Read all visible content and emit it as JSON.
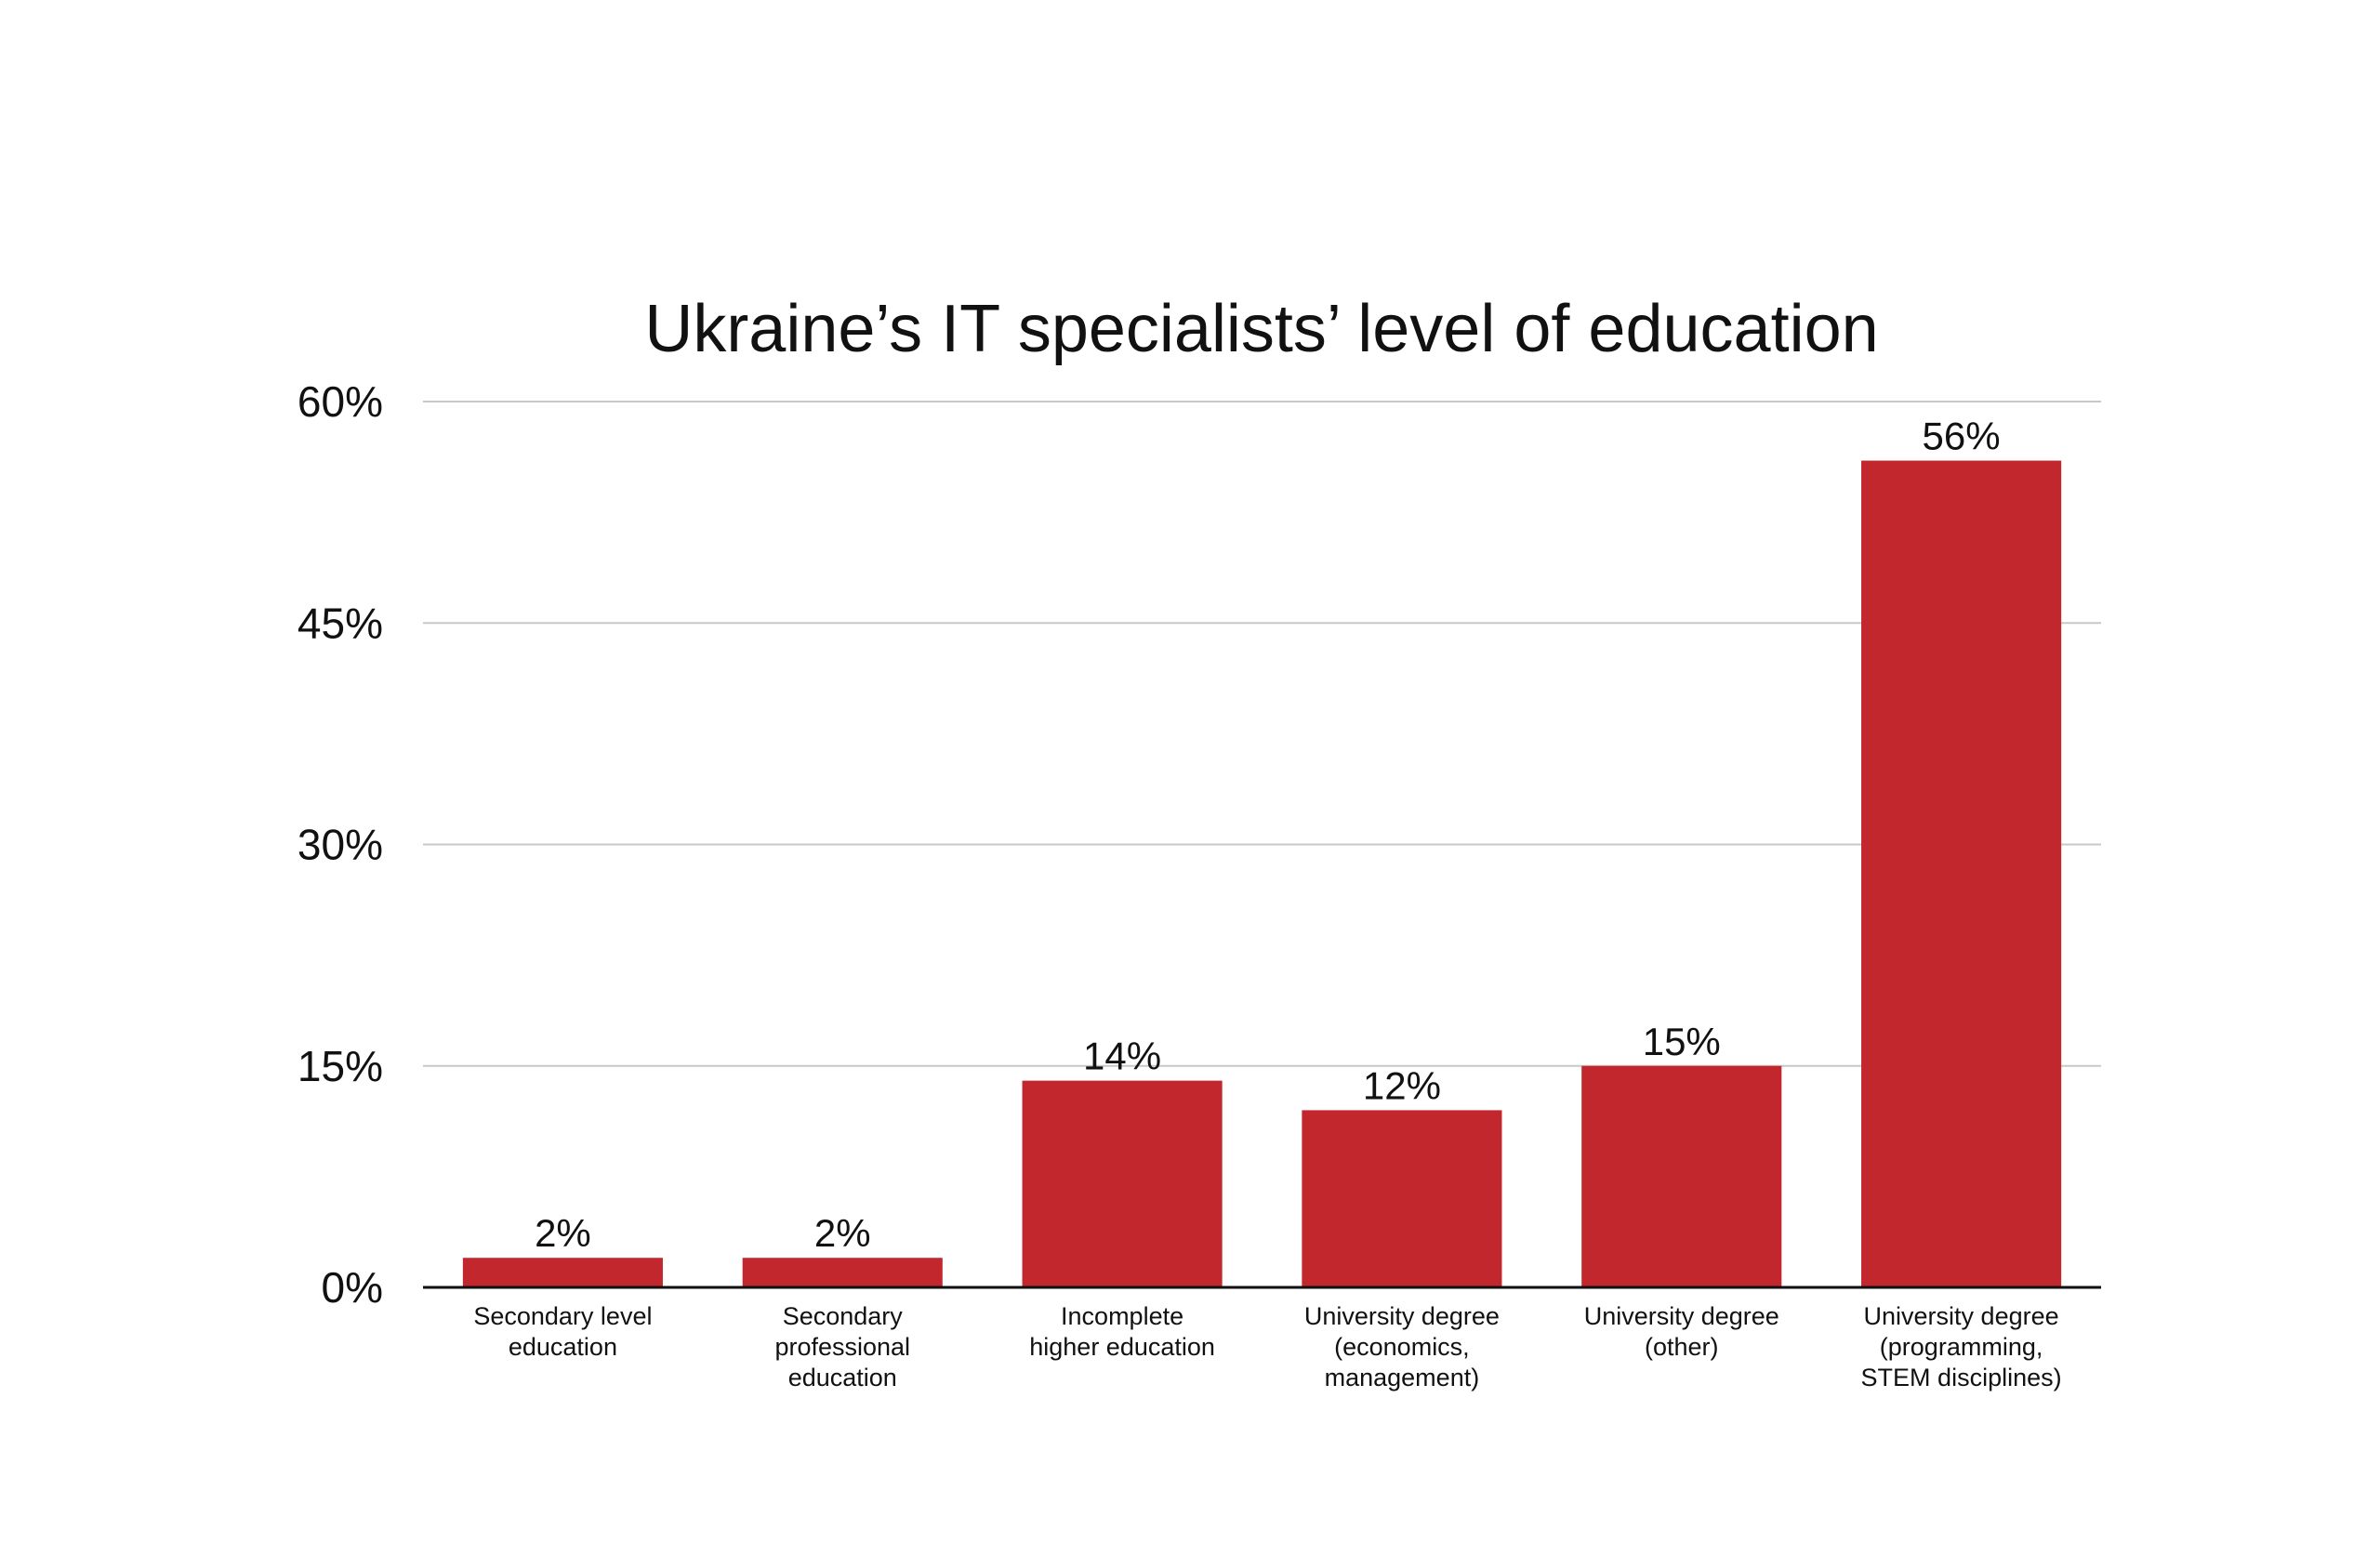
{
  "chart_data": {
    "type": "bar",
    "title": "Ukraine’s IT specialists’ level of education",
    "xlabel": "",
    "ylabel": "",
    "ylim": [
      0,
      60
    ],
    "yticks": [
      0,
      15,
      30,
      45,
      60
    ],
    "ytick_labels": [
      "0%",
      "15%",
      "30%",
      "45%",
      "60%"
    ],
    "grid": true,
    "legend": "none",
    "categories": [
      [
        "Secondary level",
        "education"
      ],
      [
        "Secondary",
        "professional",
        "education"
      ],
      [
        "Incomplete",
        "higher education"
      ],
      [
        "University degree",
        "(economics,",
        "management)"
      ],
      [
        "University degree",
        "(other)"
      ],
      [
        "University degree",
        "(programming,",
        "STEM disciplines)"
      ]
    ],
    "values": [
      2,
      2,
      14,
      12,
      15,
      56
    ],
    "data_labels": [
      "2%",
      "2%",
      "14%",
      "12%",
      "15%",
      "56%"
    ],
    "colors": {
      "bar": "#C1272D",
      "grid": "#C8C8C8",
      "axis": "#111111",
      "text": "#111111"
    }
  }
}
